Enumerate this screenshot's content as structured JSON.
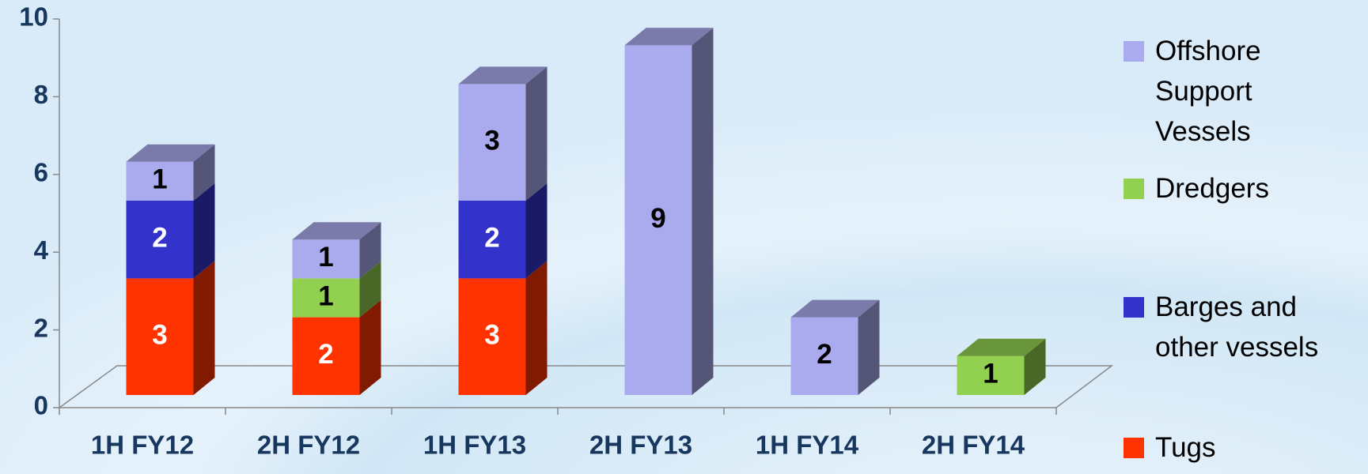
{
  "chart_data": {
    "type": "bar",
    "stacked": true,
    "categories": [
      "1H FY12",
      "2H FY12",
      "1H FY13",
      "2H FY13",
      "1H FY14",
      "2H FY14"
    ],
    "series": [
      {
        "name": "Tugs",
        "color": "#ff3300",
        "values": [
          3,
          2,
          3,
          null,
          null,
          null
        ]
      },
      {
        "name": "Barges and other vessels",
        "color": "#3333cc",
        "values": [
          2,
          null,
          2,
          null,
          null,
          null
        ]
      },
      {
        "name": "Dredgers",
        "color": "#92d050",
        "values": [
          null,
          1,
          null,
          null,
          null,
          1
        ]
      },
      {
        "name": "Offshore Support Vessels",
        "color": "#aaaaee",
        "values": [
          1,
          1,
          3,
          9,
          2,
          null
        ]
      }
    ],
    "ylim": [
      0,
      10
    ],
    "yticks": [
      0,
      2,
      4,
      6,
      8,
      10
    ],
    "legend": "right"
  }
}
